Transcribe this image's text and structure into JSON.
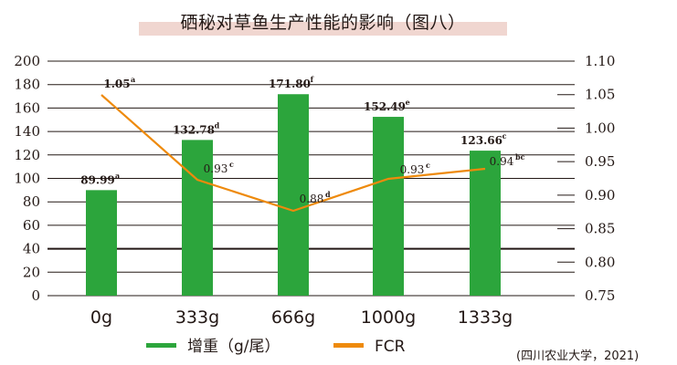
{
  "title": "硒秘对草鱼生产性能的影响（图八）",
  "source": "(四川农业大学，2021)",
  "colors": {
    "bar": "#2ca53c",
    "line": "#ee8a0c",
    "title_band": "#f0d6d0",
    "grid": "#231815"
  },
  "legend": {
    "items": [
      {
        "label": "增重（g/尾）",
        "color": "#2ca53c"
      },
      {
        "label": "FCR",
        "color": "#ee8a0c"
      }
    ]
  },
  "chart_data": {
    "type": "bar+line",
    "title": "硒秘对草鱼生产性能的影响（图八）",
    "categories": [
      "0g",
      "333g",
      "666g",
      "1000g",
      "1333g"
    ],
    "series": [
      {
        "name": "增重（g/尾）",
        "type": "bar",
        "axis": "left",
        "values": [
          89.99,
          132.78,
          171.8,
          152.49,
          123.66
        ],
        "labels": [
          "89.99",
          "132.78",
          "171.80",
          "152.49",
          "123.66"
        ],
        "superscripts": [
          "a",
          "d",
          "f",
          "e",
          "c"
        ]
      },
      {
        "name": "FCR",
        "type": "line",
        "axis": "right",
        "values": [
          1.05,
          0.93,
          0.88,
          0.93,
          0.94
        ],
        "labels": [
          "1.05",
          "0.93",
          "0.88",
          "0.93",
          "0.94"
        ],
        "superscripts": [
          "a",
          "c",
          "d",
          "c",
          "bc"
        ]
      }
    ],
    "left_axis": {
      "ylim": [
        0,
        200
      ],
      "ticks": [
        "200",
        "180",
        "160",
        "140",
        "120",
        "100",
        "80",
        "60",
        "40",
        "20",
        "0"
      ]
    },
    "right_axis": {
      "ylim": [
        0.75,
        1.1
      ],
      "ticks": [
        "1.10",
        "1.05",
        "1.00",
        "0.95",
        "0.90",
        "0.85",
        "0.80",
        "0.75"
      ]
    },
    "xlabel": "",
    "ylabel": "",
    "grid": true,
    "legend_position": "bottom"
  }
}
